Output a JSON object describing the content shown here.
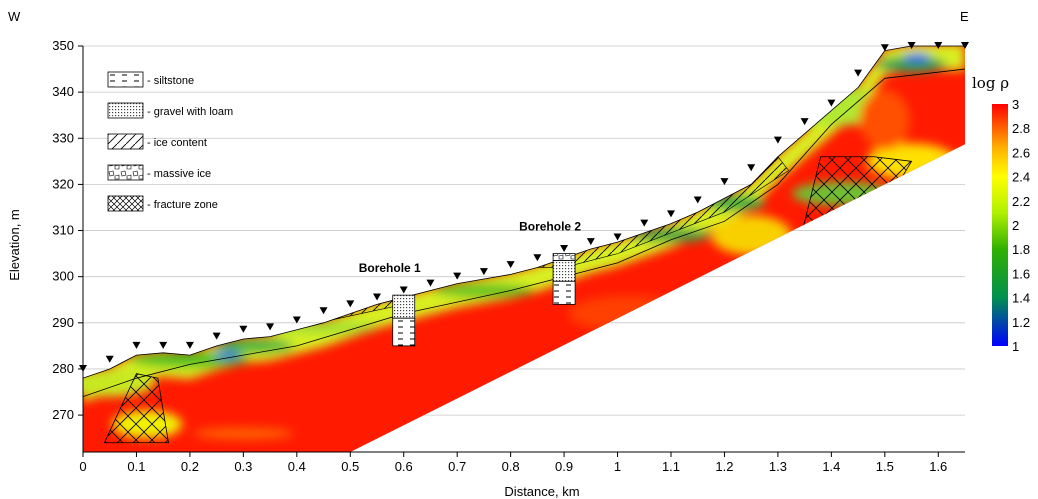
{
  "chart_data": {
    "type": "heatmap",
    "title": "",
    "xlabel": "Distance, km",
    "ylabel": "Elevation, m",
    "xlim": [
      0,
      1.65
    ],
    "ylim": [
      262,
      350
    ],
    "x_ticks": [
      "0",
      "0.1",
      "0.2",
      "0.3",
      "0.4",
      "0.5",
      "0.6",
      "0.7",
      "0.8",
      "0.9",
      "1",
      "1.1",
      "1.2",
      "1.3",
      "1.4",
      "1.5",
      "1.6"
    ],
    "x_tick_values": [
      0,
      0.1,
      0.2,
      0.3,
      0.4,
      0.5,
      0.6,
      0.7,
      0.8,
      0.9,
      1.0,
      1.1,
      1.2,
      1.3,
      1.4,
      1.5,
      1.6
    ],
    "y_ticks": [
      "270",
      "280",
      "290",
      "300",
      "310",
      "320",
      "330",
      "340",
      "350"
    ],
    "y_tick_values": [
      270,
      280,
      290,
      300,
      310,
      320,
      330,
      340,
      350
    ],
    "grid": "horizontal",
    "direction_labels": {
      "west": "W",
      "east": "E"
    },
    "colorbar": {
      "title": "log ρ",
      "min": 1,
      "max": 3,
      "ticks": [
        "3",
        "2.8",
        "2.6",
        "2.4",
        "2.2",
        "2",
        "1.8",
        "1.6",
        "1.4",
        "1.2",
        "1"
      ],
      "tick_values": [
        3,
        2.8,
        2.6,
        2.4,
        2.2,
        2,
        1.8,
        1.6,
        1.4,
        1.2,
        1
      ],
      "colors": [
        "#0000ff",
        "#00a040",
        "#30c000",
        "#c0ff00",
        "#ffff00",
        "#ffa000",
        "#ff0000"
      ]
    },
    "legend": {
      "position": "top-left",
      "items": [
        {
          "label": "- siltstone",
          "pattern": "dashes"
        },
        {
          "label": "- gravel with loam",
          "pattern": "dots"
        },
        {
          "label": "- ice content",
          "pattern": "hatch"
        },
        {
          "label": "- massive ice",
          "pattern": "blocks"
        },
        {
          "label": "- fracture zone",
          "pattern": "crosshatch"
        }
      ]
    },
    "surface": [
      {
        "x": 0.0,
        "y": 278
      },
      {
        "x": 0.05,
        "y": 280
      },
      {
        "x": 0.1,
        "y": 283
      },
      {
        "x": 0.15,
        "y": 283.5
      },
      {
        "x": 0.2,
        "y": 283
      },
      {
        "x": 0.25,
        "y": 285
      },
      {
        "x": 0.3,
        "y": 286.5
      },
      {
        "x": 0.35,
        "y": 287
      },
      {
        "x": 0.4,
        "y": 288.5
      },
      {
        "x": 0.45,
        "y": 290
      },
      {
        "x": 0.5,
        "y": 292
      },
      {
        "x": 0.55,
        "y": 294
      },
      {
        "x": 0.6,
        "y": 295.5
      },
      {
        "x": 0.65,
        "y": 297
      },
      {
        "x": 0.7,
        "y": 298.5
      },
      {
        "x": 0.75,
        "y": 299.5
      },
      {
        "x": 0.8,
        "y": 300.5
      },
      {
        "x": 0.85,
        "y": 302
      },
      {
        "x": 0.9,
        "y": 304
      },
      {
        "x": 0.95,
        "y": 306
      },
      {
        "x": 1.0,
        "y": 307.5
      },
      {
        "x": 1.05,
        "y": 309.5
      },
      {
        "x": 1.1,
        "y": 311.5
      },
      {
        "x": 1.15,
        "y": 314
      },
      {
        "x": 1.2,
        "y": 317
      },
      {
        "x": 1.25,
        "y": 320
      },
      {
        "x": 1.3,
        "y": 326
      },
      {
        "x": 1.35,
        "y": 331
      },
      {
        "x": 1.4,
        "y": 336
      },
      {
        "x": 1.45,
        "y": 341
      },
      {
        "x": 1.5,
        "y": 349
      },
      {
        "x": 1.55,
        "y": 350
      },
      {
        "x": 1.6,
        "y": 350
      },
      {
        "x": 1.65,
        "y": 350
      }
    ],
    "electrodes": [
      {
        "x": 0.0,
        "y": 280
      },
      {
        "x": 0.05,
        "y": 282
      },
      {
        "x": 0.1,
        "y": 285
      },
      {
        "x": 0.15,
        "y": 285
      },
      {
        "x": 0.2,
        "y": 285
      },
      {
        "x": 0.25,
        "y": 287
      },
      {
        "x": 0.3,
        "y": 288.5
      },
      {
        "x": 0.35,
        "y": 289
      },
      {
        "x": 0.4,
        "y": 290.5
      },
      {
        "x": 0.45,
        "y": 292.5
      },
      {
        "x": 0.5,
        "y": 294
      },
      {
        "x": 0.55,
        "y": 295.5
      },
      {
        "x": 0.6,
        "y": 297
      },
      {
        "x": 0.65,
        "y": 298.5
      },
      {
        "x": 0.7,
        "y": 300
      },
      {
        "x": 0.75,
        "y": 301
      },
      {
        "x": 0.8,
        "y": 302.5
      },
      {
        "x": 0.85,
        "y": 304
      },
      {
        "x": 0.9,
        "y": 306
      },
      {
        "x": 0.95,
        "y": 307.5
      },
      {
        "x": 1.0,
        "y": 308.5
      },
      {
        "x": 1.05,
        "y": 311.5
      },
      {
        "x": 1.1,
        "y": 313.5
      },
      {
        "x": 1.15,
        "y": 316.5
      },
      {
        "x": 1.2,
        "y": 320.5
      },
      {
        "x": 1.25,
        "y": 323.5
      },
      {
        "x": 1.3,
        "y": 329.5
      },
      {
        "x": 1.35,
        "y": 333.5
      },
      {
        "x": 1.4,
        "y": 337.5
      },
      {
        "x": 1.45,
        "y": 344
      },
      {
        "x": 1.5,
        "y": 349.5
      },
      {
        "x": 1.55,
        "y": 350
      },
      {
        "x": 1.6,
        "y": 350
      },
      {
        "x": 1.65,
        "y": 350
      }
    ],
    "boreholes": [
      {
        "label": "Borehole 1",
        "x": 0.6,
        "top": 296,
        "bottom": 285,
        "layers": [
          {
            "pattern": "dots",
            "top": 296,
            "bottom": 291
          },
          {
            "pattern": "dashes",
            "top": 291,
            "bottom": 285
          }
        ]
      },
      {
        "label": "Borehole 2",
        "x": 0.9,
        "top": 305,
        "bottom": 294,
        "layers": [
          {
            "pattern": "blocks",
            "top": 305,
            "bottom": 303.5
          },
          {
            "pattern": "dots",
            "top": 303.5,
            "bottom": 299
          },
          {
            "pattern": "dashes",
            "top": 299,
            "bottom": 294
          }
        ]
      }
    ]
  }
}
